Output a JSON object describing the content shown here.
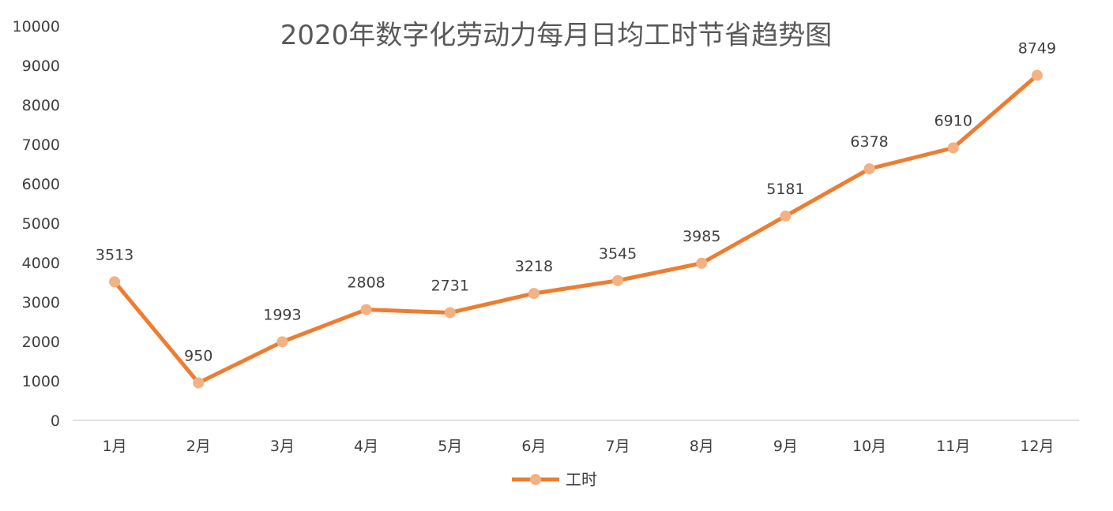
{
  "chart_data": {
    "type": "line",
    "title": "2020年数字化劳动力每月日均工时节省趋势图",
    "xlabel": "",
    "ylabel": "",
    "categories": [
      "1月",
      "2月",
      "3月",
      "4月",
      "5月",
      "6月",
      "7月",
      "8月",
      "9月",
      "10月",
      "11月",
      "12月"
    ],
    "series": [
      {
        "name": "工时",
        "values": [
          3513,
          950,
          1993,
          2808,
          2731,
          3218,
          3545,
          3985,
          5181,
          6378,
          6910,
          8749
        ]
      }
    ],
    "ylim": [
      0,
      10000
    ],
    "yticks": [
      "0",
      "1000",
      "2000",
      "3000",
      "4000",
      "5000",
      "6000",
      "7000",
      "8000",
      "9000",
      "10000"
    ],
    "data_labels": [
      "3513",
      "950",
      "1993",
      "2808",
      "2731",
      "3218",
      "3545",
      "3985",
      "5181",
      "6378",
      "6910",
      "8749"
    ],
    "grid": false,
    "legend_position": "bottom",
    "colors": {
      "line": "#ED7D31",
      "marker": "#F4B183",
      "axis": "#D9D9D9"
    }
  }
}
